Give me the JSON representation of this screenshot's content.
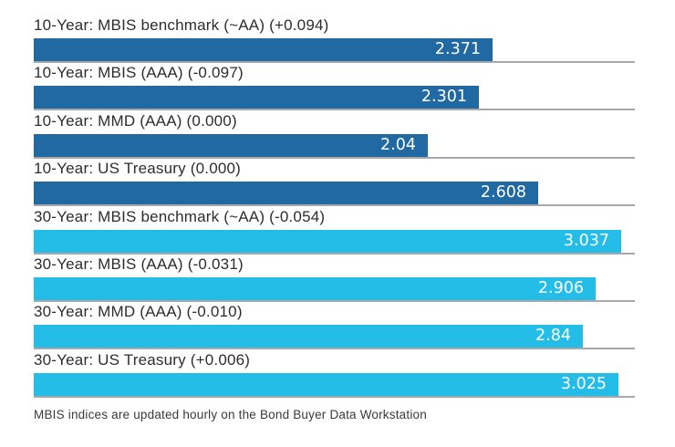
{
  "chart_data": {
    "type": "bar",
    "orientation": "horizontal",
    "value_axis_max": 3.11,
    "grid": "per-row baseline only",
    "legend": "none",
    "colors": {
      "ten_year_bar": "#2069a2",
      "thirty_year_bar": "#24bde8",
      "baseline": "#a8a8a8",
      "value_text": "#ffffff",
      "label_text": "#2d2d2d"
    },
    "bars": [
      {
        "label": "10-Year: MBIS benchmark (~AA) (+0.094)",
        "value": 2.371,
        "display_value": "2.371",
        "change": "+0.094",
        "group": "10-Year",
        "color": "#2069a2"
      },
      {
        "label": "10-Year: MBIS (AAA) (-0.097)",
        "value": 2.301,
        "display_value": "2.301",
        "change": "-0.097",
        "group": "10-Year",
        "color": "#2069a2"
      },
      {
        "label": "10-Year: MMD (AAA) (0.000)",
        "value": 2.04,
        "display_value": "2.04",
        "change": "0.000",
        "group": "10-Year",
        "color": "#2069a2"
      },
      {
        "label": "10-Year: US Treasury (0.000)",
        "value": 2.608,
        "display_value": "2.608",
        "change": "0.000",
        "group": "10-Year",
        "color": "#2069a2"
      },
      {
        "label": "30-Year: MBIS benchmark (~AA) (-0.054)",
        "value": 3.037,
        "display_value": "3.037",
        "change": "-0.054",
        "group": "30-Year",
        "color": "#24bde8"
      },
      {
        "label": "30-Year: MBIS (AAA) (-0.031)",
        "value": 2.906,
        "display_value": "2.906",
        "change": "-0.031",
        "group": "30-Year",
        "color": "#24bde8"
      },
      {
        "label": "30-Year: MMD (AAA) (-0.010)",
        "value": 2.84,
        "display_value": "2.84",
        "change": "-0.010",
        "group": "30-Year",
        "color": "#24bde8"
      },
      {
        "label": "30-Year: US Treasury (+0.006)",
        "value": 3.025,
        "display_value": "3.025",
        "change": "+0.006",
        "group": "30-Year",
        "color": "#24bde8"
      }
    ],
    "footnote": "MBIS indices are updated hourly on the Bond Buyer Data Workstation"
  }
}
